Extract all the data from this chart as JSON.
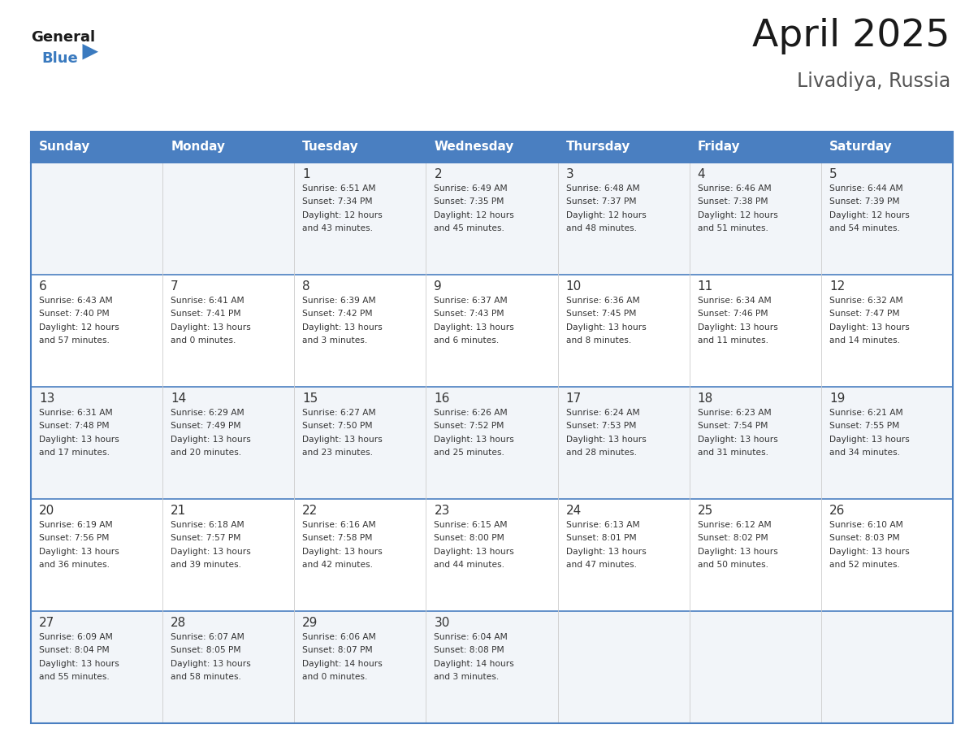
{
  "title": "April 2025",
  "subtitle": "Livadiya, Russia",
  "days_of_week": [
    "Sunday",
    "Monday",
    "Tuesday",
    "Wednesday",
    "Thursday",
    "Friday",
    "Saturday"
  ],
  "header_bg": "#4a7fc1",
  "header_text": "#ffffff",
  "border_color": "#4a7fc1",
  "row_sep_color": "#4a7fc1",
  "col_sep_color": "#cccccc",
  "cell_bg_odd": "#f2f5f9",
  "cell_bg_even": "#ffffff",
  "text_color": "#333333",
  "day_num_color": "#333333",
  "logo_general_color": "#1a1a1a",
  "logo_blue_color": "#3a7abf",
  "calendar": [
    [
      {
        "day": null,
        "data": null
      },
      {
        "day": null,
        "data": null
      },
      {
        "day": 1,
        "data": "Sunrise: 6:51 AM\nSunset: 7:34 PM\nDaylight: 12 hours\nand 43 minutes."
      },
      {
        "day": 2,
        "data": "Sunrise: 6:49 AM\nSunset: 7:35 PM\nDaylight: 12 hours\nand 45 minutes."
      },
      {
        "day": 3,
        "data": "Sunrise: 6:48 AM\nSunset: 7:37 PM\nDaylight: 12 hours\nand 48 minutes."
      },
      {
        "day": 4,
        "data": "Sunrise: 6:46 AM\nSunset: 7:38 PM\nDaylight: 12 hours\nand 51 minutes."
      },
      {
        "day": 5,
        "data": "Sunrise: 6:44 AM\nSunset: 7:39 PM\nDaylight: 12 hours\nand 54 minutes."
      }
    ],
    [
      {
        "day": 6,
        "data": "Sunrise: 6:43 AM\nSunset: 7:40 PM\nDaylight: 12 hours\nand 57 minutes."
      },
      {
        "day": 7,
        "data": "Sunrise: 6:41 AM\nSunset: 7:41 PM\nDaylight: 13 hours\nand 0 minutes."
      },
      {
        "day": 8,
        "data": "Sunrise: 6:39 AM\nSunset: 7:42 PM\nDaylight: 13 hours\nand 3 minutes."
      },
      {
        "day": 9,
        "data": "Sunrise: 6:37 AM\nSunset: 7:43 PM\nDaylight: 13 hours\nand 6 minutes."
      },
      {
        "day": 10,
        "data": "Sunrise: 6:36 AM\nSunset: 7:45 PM\nDaylight: 13 hours\nand 8 minutes."
      },
      {
        "day": 11,
        "data": "Sunrise: 6:34 AM\nSunset: 7:46 PM\nDaylight: 13 hours\nand 11 minutes."
      },
      {
        "day": 12,
        "data": "Sunrise: 6:32 AM\nSunset: 7:47 PM\nDaylight: 13 hours\nand 14 minutes."
      }
    ],
    [
      {
        "day": 13,
        "data": "Sunrise: 6:31 AM\nSunset: 7:48 PM\nDaylight: 13 hours\nand 17 minutes."
      },
      {
        "day": 14,
        "data": "Sunrise: 6:29 AM\nSunset: 7:49 PM\nDaylight: 13 hours\nand 20 minutes."
      },
      {
        "day": 15,
        "data": "Sunrise: 6:27 AM\nSunset: 7:50 PM\nDaylight: 13 hours\nand 23 minutes."
      },
      {
        "day": 16,
        "data": "Sunrise: 6:26 AM\nSunset: 7:52 PM\nDaylight: 13 hours\nand 25 minutes."
      },
      {
        "day": 17,
        "data": "Sunrise: 6:24 AM\nSunset: 7:53 PM\nDaylight: 13 hours\nand 28 minutes."
      },
      {
        "day": 18,
        "data": "Sunrise: 6:23 AM\nSunset: 7:54 PM\nDaylight: 13 hours\nand 31 minutes."
      },
      {
        "day": 19,
        "data": "Sunrise: 6:21 AM\nSunset: 7:55 PM\nDaylight: 13 hours\nand 34 minutes."
      }
    ],
    [
      {
        "day": 20,
        "data": "Sunrise: 6:19 AM\nSunset: 7:56 PM\nDaylight: 13 hours\nand 36 minutes."
      },
      {
        "day": 21,
        "data": "Sunrise: 6:18 AM\nSunset: 7:57 PM\nDaylight: 13 hours\nand 39 minutes."
      },
      {
        "day": 22,
        "data": "Sunrise: 6:16 AM\nSunset: 7:58 PM\nDaylight: 13 hours\nand 42 minutes."
      },
      {
        "day": 23,
        "data": "Sunrise: 6:15 AM\nSunset: 8:00 PM\nDaylight: 13 hours\nand 44 minutes."
      },
      {
        "day": 24,
        "data": "Sunrise: 6:13 AM\nSunset: 8:01 PM\nDaylight: 13 hours\nand 47 minutes."
      },
      {
        "day": 25,
        "data": "Sunrise: 6:12 AM\nSunset: 8:02 PM\nDaylight: 13 hours\nand 50 minutes."
      },
      {
        "day": 26,
        "data": "Sunrise: 6:10 AM\nSunset: 8:03 PM\nDaylight: 13 hours\nand 52 minutes."
      }
    ],
    [
      {
        "day": 27,
        "data": "Sunrise: 6:09 AM\nSunset: 8:04 PM\nDaylight: 13 hours\nand 55 minutes."
      },
      {
        "day": 28,
        "data": "Sunrise: 6:07 AM\nSunset: 8:05 PM\nDaylight: 13 hours\nand 58 minutes."
      },
      {
        "day": 29,
        "data": "Sunrise: 6:06 AM\nSunset: 8:07 PM\nDaylight: 14 hours\nand 0 minutes."
      },
      {
        "day": 30,
        "data": "Sunrise: 6:04 AM\nSunset: 8:08 PM\nDaylight: 14 hours\nand 3 minutes."
      },
      {
        "day": null,
        "data": null
      },
      {
        "day": null,
        "data": null
      },
      {
        "day": null,
        "data": null
      }
    ]
  ]
}
